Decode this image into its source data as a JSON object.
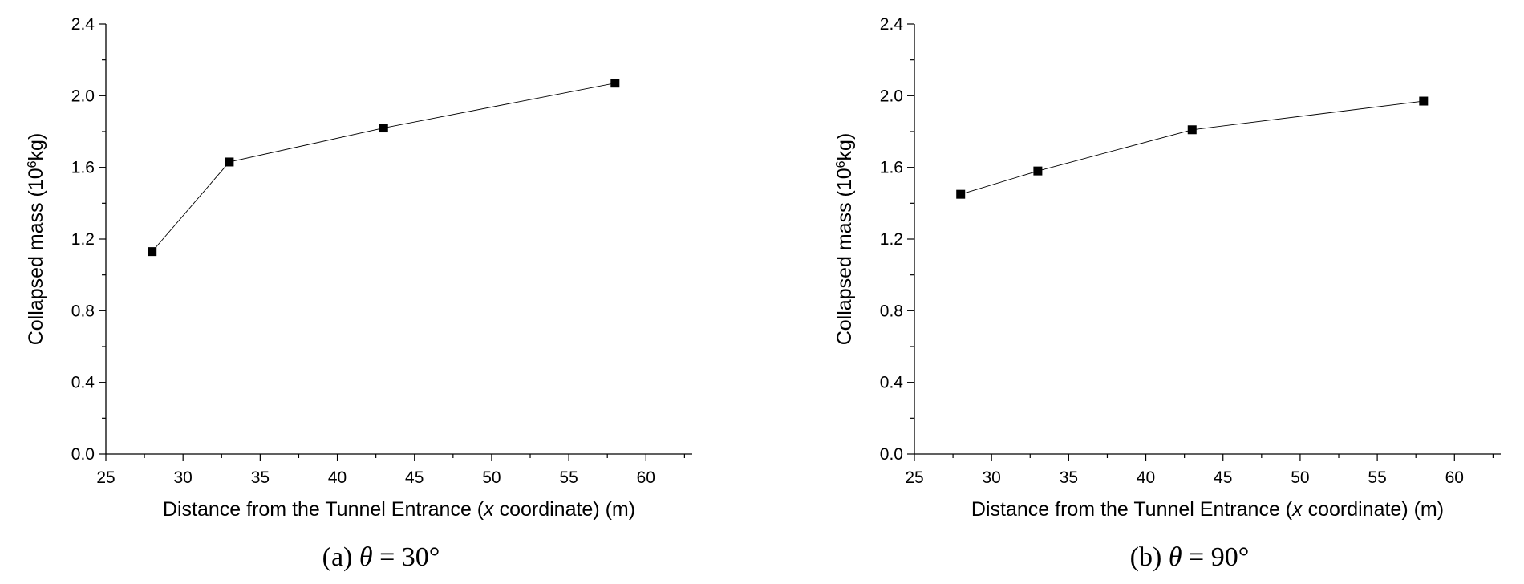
{
  "chart_data": [
    {
      "type": "line",
      "caption_prefix": "(a) ",
      "caption_theta": "θ",
      "caption_rest": " = 30°",
      "xlabel_pre": "Distance from the Tunnel Entrance (",
      "xlabel_var": "x",
      "xlabel_post": " coordinate) (m)",
      "ylabel_pre": "Collapsed mass (10",
      "ylabel_sup": "6",
      "ylabel_post": "kg)",
      "xlim": [
        25,
        63
      ],
      "ylim": [
        0,
        2.4
      ],
      "xticks": [
        25,
        30,
        35,
        40,
        45,
        50,
        55,
        60
      ],
      "yticks": [
        0.0,
        0.4,
        0.8,
        1.2,
        1.6,
        2.0,
        2.4
      ],
      "yticks_text": [
        "0.0",
        "0.4",
        "0.8",
        "1.2",
        "1.6",
        "2.0",
        "2.4"
      ],
      "grid": false,
      "series": [
        {
          "x": [
            28,
            33,
            43,
            58
          ],
          "values": [
            1.13,
            1.63,
            1.82,
            2.07
          ],
          "marker": "square",
          "color": "#000000"
        }
      ]
    },
    {
      "type": "line",
      "caption_prefix": "(b) ",
      "caption_theta": "θ",
      "caption_rest": " = 90°",
      "xlabel_pre": "Distance from the Tunnel Entrance (",
      "xlabel_var": "x",
      "xlabel_post": " coordinate) (m)",
      "ylabel_pre": "Collapsed mass (10",
      "ylabel_sup": "6",
      "ylabel_post": "kg)",
      "xlim": [
        25,
        63
      ],
      "ylim": [
        0,
        2.4
      ],
      "xticks": [
        25,
        30,
        35,
        40,
        45,
        50,
        55,
        60
      ],
      "yticks": [
        0.0,
        0.4,
        0.8,
        1.2,
        1.6,
        2.0,
        2.4
      ],
      "yticks_text": [
        "0.0",
        "0.4",
        "0.8",
        "1.2",
        "1.6",
        "2.0",
        "2.4"
      ],
      "grid": false,
      "series": [
        {
          "x": [
            28,
            33,
            43,
            58
          ],
          "values": [
            1.45,
            1.58,
            1.81,
            1.97
          ],
          "marker": "square",
          "color": "#000000"
        }
      ]
    }
  ]
}
